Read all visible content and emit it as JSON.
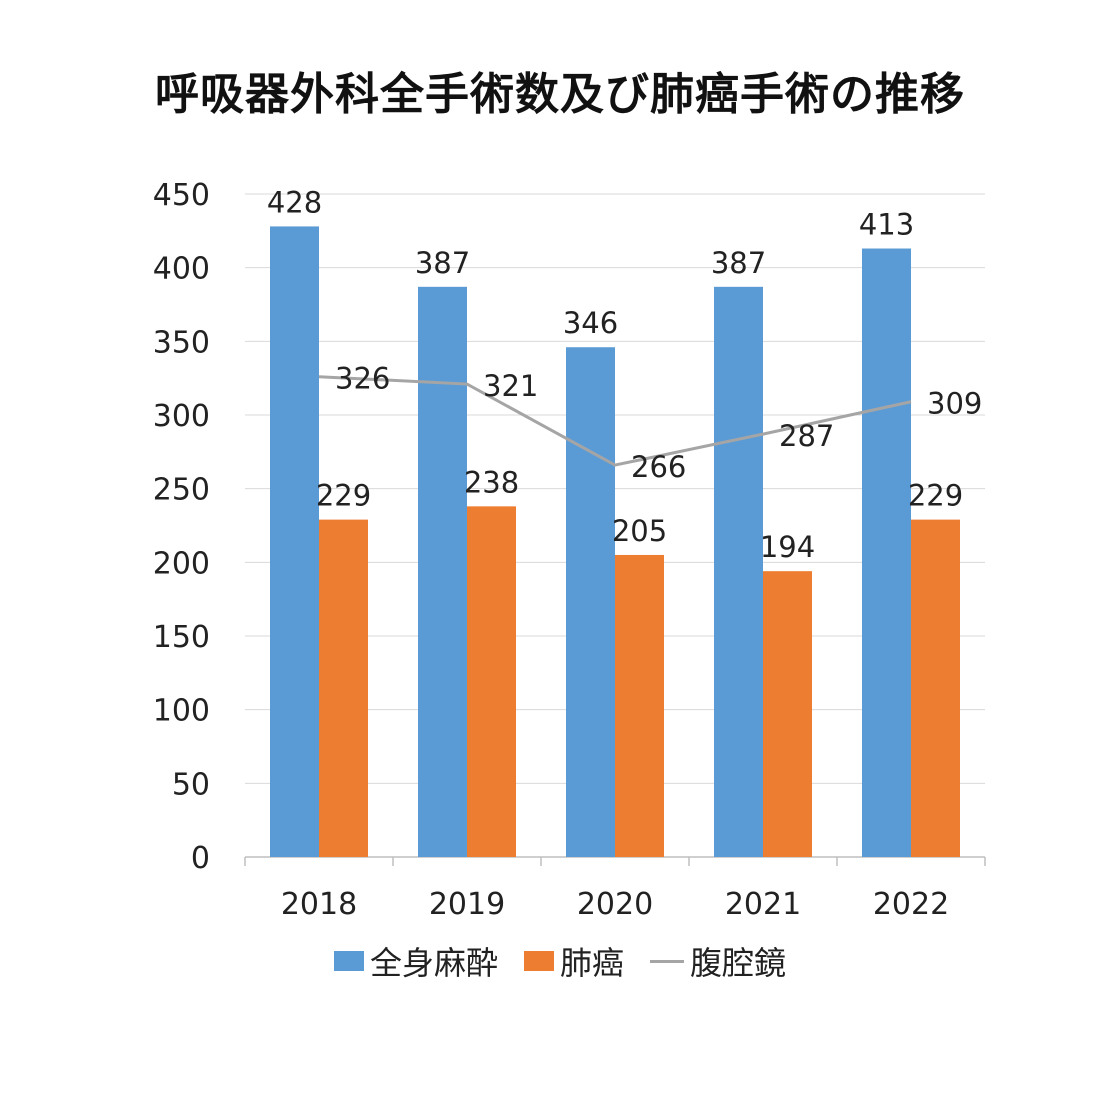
{
  "title": "呼吸器外科全手術数及び肺癌手術の推移",
  "chart_data": {
    "type": "bar",
    "categories": [
      "2018",
      "2019",
      "2020",
      "2021",
      "2022"
    ],
    "series": [
      {
        "name": "全身麻酔",
        "type": "bar",
        "color": "#5B9BD5",
        "values": [
          428,
          387,
          346,
          387,
          413
        ]
      },
      {
        "name": "肺癌",
        "type": "bar",
        "color": "#ED7D31",
        "values": [
          229,
          238,
          205,
          194,
          229
        ]
      },
      {
        "name": "腹腔鏡",
        "type": "line",
        "color": "#A5A5A5",
        "values": [
          326,
          321,
          266,
          287,
          309
        ]
      }
    ],
    "ylim": [
      0,
      450
    ],
    "yticks": [
      0,
      50,
      100,
      150,
      200,
      250,
      300,
      350,
      400,
      450
    ],
    "grid": true,
    "legend": "bottom"
  }
}
